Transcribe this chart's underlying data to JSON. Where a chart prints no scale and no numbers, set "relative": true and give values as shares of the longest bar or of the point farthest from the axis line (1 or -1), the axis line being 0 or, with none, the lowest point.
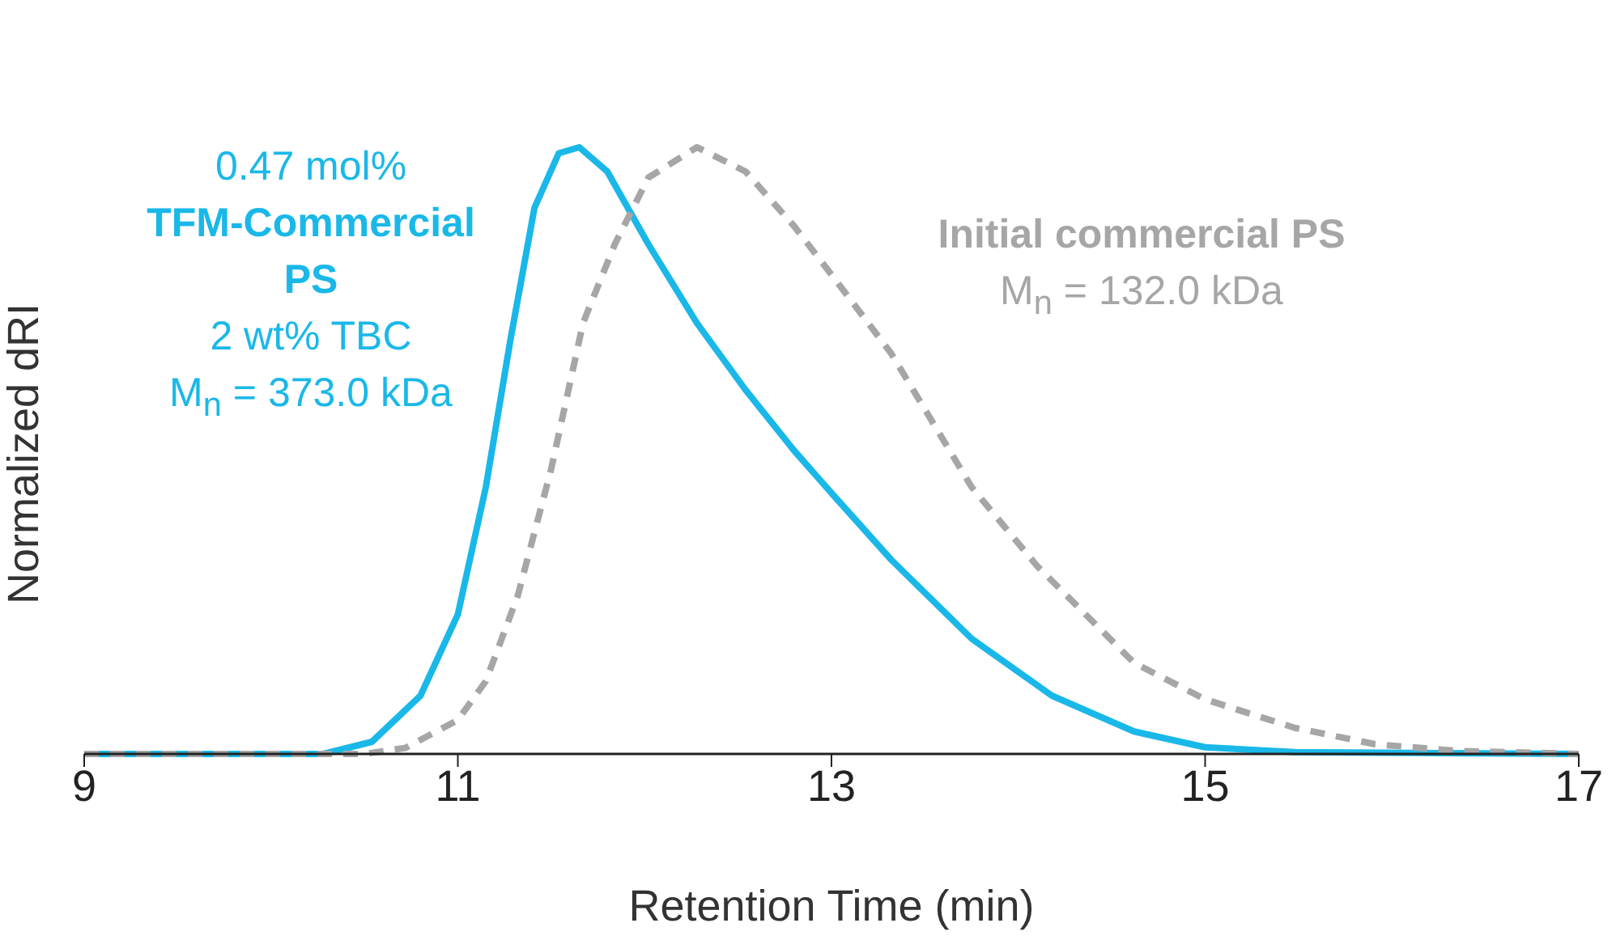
{
  "chart_data": {
    "type": "line",
    "relative": true,
    "xlabel": "Retention Time (min)",
    "ylabel": "Normalized dRI",
    "xlim": [
      9,
      17
    ],
    "xticks": [
      9,
      11,
      13,
      15,
      17
    ],
    "marker": "none",
    "series": [
      {
        "name": "TFM-Commercial PS",
        "color": "#1ab8e8",
        "line_style": "solid",
        "x": [
          9,
          10.28,
          10.54,
          10.8,
          11,
          11.15,
          11.28,
          11.41,
          11.54,
          11.65,
          11.8,
          12.02,
          12.28,
          12.54,
          12.8,
          13,
          13.32,
          13.75,
          14.18,
          14.62,
          15,
          15.48,
          17
        ],
        "values": [
          0,
          0,
          0.02,
          0.096,
          0.23,
          0.44,
          0.68,
          0.9,
          0.99,
          1,
          0.96,
          0.84,
          0.71,
          0.6,
          0.5,
          0.43,
          0.32,
          0.19,
          0.096,
          0.037,
          0.011,
          0.003,
          0
        ]
      },
      {
        "name": "Initial commercial PS",
        "color": "#a6a6a6",
        "line_style": "dashed",
        "x": [
          9,
          10.5,
          10.72,
          11,
          11.15,
          11.32,
          11.5,
          11.67,
          11.84,
          12.02,
          12.28,
          12.54,
          12.8,
          13,
          13.32,
          13.75,
          14.1,
          14.62,
          15,
          15.48,
          15.91,
          16.35,
          17
        ],
        "values": [
          0,
          0,
          0.01,
          0.056,
          0.12,
          0.26,
          0.47,
          0.71,
          0.84,
          0.95,
          1,
          0.96,
          0.87,
          0.79,
          0.66,
          0.44,
          0.31,
          0.15,
          0.09,
          0.043,
          0.016,
          0.005,
          0
        ]
      }
    ],
    "annotations": [
      "0.47 mol%",
      "2 wt% TBC",
      "M$_{n}$ = 373.0 kDa",
      "M$_{n}$ = 132.0 kDa"
    ]
  }
}
